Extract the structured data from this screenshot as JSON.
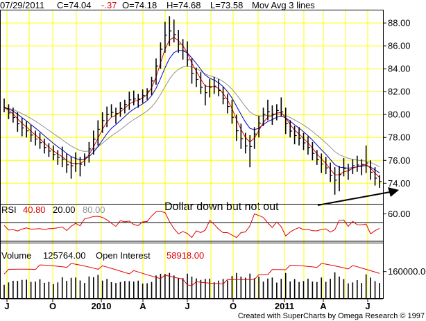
{
  "header": {
    "date": "07/29/2011",
    "close": "C=74.04",
    "change": "-.37",
    "open": "O=74.18",
    "high": "H=74.68",
    "low": "L=73.58",
    "study": "Mov Avg 3 lines"
  },
  "annotation": "Dollar down but not out",
  "rsi": {
    "label": "RSI",
    "value": "40.80",
    "lower": "20.00",
    "upper": "80.00"
  },
  "volume_panel": {
    "label": "Volume",
    "volume": "125764.00",
    "oi_label": "Open Interest",
    "open_interest": "58918.00"
  },
  "footer": "Created with SuperCharts by Omega Research © 1997",
  "colors": {
    "grid": "#ffff00",
    "bars": "#000000",
    "ma_fast": "#e00000",
    "ma_mid": "#0000c8",
    "ma_slow": "#909090",
    "negative": "#e00000",
    "open_interest": "#e00000",
    "arrow": "#000000"
  },
  "chart_data": {
    "type": "bar",
    "price": {
      "y_ticks": [
        "88.00",
        "86.00",
        "84.00",
        "82.00",
        "80.00",
        "78.00",
        "76.00",
        "74.00"
      ],
      "ylim": [
        72.2,
        89.1
      ],
      "high_low_weekly": [
        [
          81.4,
          80.2
        ],
        [
          80.9,
          79.6
        ],
        [
          80.6,
          79.3
        ],
        [
          80.2,
          78.5
        ],
        [
          79.7,
          78.1
        ],
        [
          79.4,
          78.0
        ],
        [
          79.1,
          77.6
        ],
        [
          78.6,
          77.3
        ],
        [
          78.4,
          77.0
        ],
        [
          77.9,
          76.6
        ],
        [
          77.5,
          76.3
        ],
        [
          77.3,
          76.0
        ],
        [
          76.9,
          75.6
        ],
        [
          77.2,
          75.4
        ],
        [
          76.6,
          74.9
        ],
        [
          76.3,
          74.4
        ],
        [
          76.7,
          75.0
        ],
        [
          76.3,
          74.6
        ],
        [
          76.6,
          75.5
        ],
        [
          77.6,
          75.8
        ],
        [
          78.6,
          76.5
        ],
        [
          79.5,
          77.3
        ],
        [
          80.2,
          78.4
        ],
        [
          80.7,
          78.9
        ],
        [
          80.9,
          79.8
        ],
        [
          80.6,
          79.2
        ],
        [
          81.1,
          79.8
        ],
        [
          81.3,
          80.1
        ],
        [
          82.0,
          80.4
        ],
        [
          82.1,
          80.8
        ],
        [
          81.8,
          80.6
        ],
        [
          82.2,
          81.0
        ],
        [
          82.3,
          81.3
        ],
        [
          83.3,
          81.7
        ],
        [
          84.9,
          82.6
        ],
        [
          86.3,
          84.0
        ],
        [
          88.1,
          85.4
        ],
        [
          88.6,
          86.0
        ],
        [
          88.3,
          86.3
        ],
        [
          87.4,
          85.4
        ],
        [
          86.6,
          84.8
        ],
        [
          86.4,
          84.2
        ],
        [
          84.9,
          82.7
        ],
        [
          84.1,
          82.4
        ],
        [
          83.7,
          81.8
        ],
        [
          82.6,
          80.8
        ],
        [
          83.1,
          81.5
        ],
        [
          83.3,
          81.8
        ],
        [
          83.1,
          81.6
        ],
        [
          82.4,
          80.9
        ],
        [
          81.8,
          80.1
        ],
        [
          81.3,
          79.2
        ],
        [
          80.0,
          77.7
        ],
        [
          79.2,
          77.0
        ],
        [
          78.4,
          76.6
        ],
        [
          78.2,
          75.4
        ],
        [
          78.9,
          77.0
        ],
        [
          79.9,
          78.0
        ],
        [
          80.6,
          79.0
        ],
        [
          81.3,
          79.5
        ],
        [
          80.8,
          79.1
        ],
        [
          80.9,
          79.5
        ],
        [
          81.5,
          79.8
        ],
        [
          80.6,
          78.3
        ],
        [
          79.5,
          78.0
        ],
        [
          79.0,
          77.4
        ],
        [
          78.9,
          77.3
        ],
        [
          78.4,
          76.9
        ],
        [
          78.1,
          76.5
        ],
        [
          77.6,
          76.0
        ],
        [
          76.9,
          75.6
        ],
        [
          76.6,
          74.9
        ],
        [
          76.3,
          74.8
        ],
        [
          75.8,
          74.1
        ],
        [
          75.4,
          73.0
        ],
        [
          75.5,
          73.3
        ],
        [
          76.2,
          74.6
        ],
        [
          75.7,
          74.3
        ],
        [
          76.1,
          74.8
        ],
        [
          76.4,
          75.0
        ],
        [
          76.1,
          74.7
        ],
        [
          77.3,
          74.9
        ],
        [
          76.0,
          74.3
        ],
        [
          75.4,
          73.8
        ],
        [
          74.7,
          73.6
        ]
      ]
    },
    "rsi": {
      "y_ticks": [
        "60.00"
      ],
      "ylim": [
        35,
        68
      ],
      "levels": [
        20,
        80
      ]
    },
    "volume": {
      "y_ticks": [
        "160000.00"
      ],
      "ylim": [
        0,
        330000
      ]
    },
    "x_ticks": [
      "J",
      "O",
      "2010",
      "A",
      "J",
      "O",
      "2011",
      "A",
      "J"
    ]
  }
}
